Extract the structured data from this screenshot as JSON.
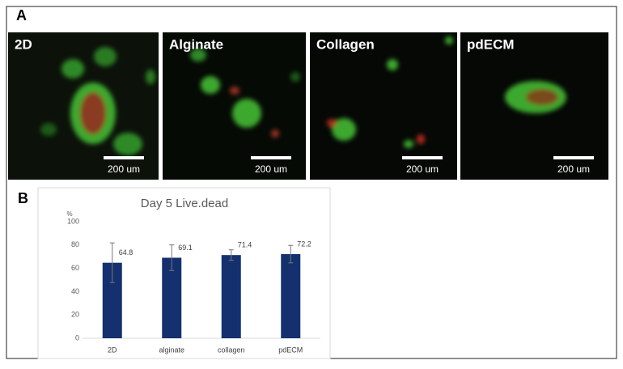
{
  "panel_a": {
    "label": "A",
    "images": [
      {
        "label": "2D",
        "scale_bar": "200 um"
      },
      {
        "label": "Alginate",
        "scale_bar": "200 um"
      },
      {
        "label": "Collagen",
        "scale_bar": "200 um"
      },
      {
        "label": "pdECM",
        "scale_bar": "200 um"
      }
    ]
  },
  "panel_b": {
    "label": "B"
  },
  "chart_data": {
    "type": "bar",
    "title": "Day 5 Live.dead",
    "y_label": "%",
    "categories": [
      "2D",
      "alginate",
      "collagen",
      "pdECM"
    ],
    "values": [
      64.8,
      69.1,
      71.4,
      72.2
    ],
    "errors": [
      17,
      11,
      4.5,
      7.5
    ],
    "color": "#15306e",
    "ylim": [
      0,
      100
    ],
    "yticks": [
      0,
      20,
      40,
      60,
      80,
      100
    ],
    "grid": false
  }
}
